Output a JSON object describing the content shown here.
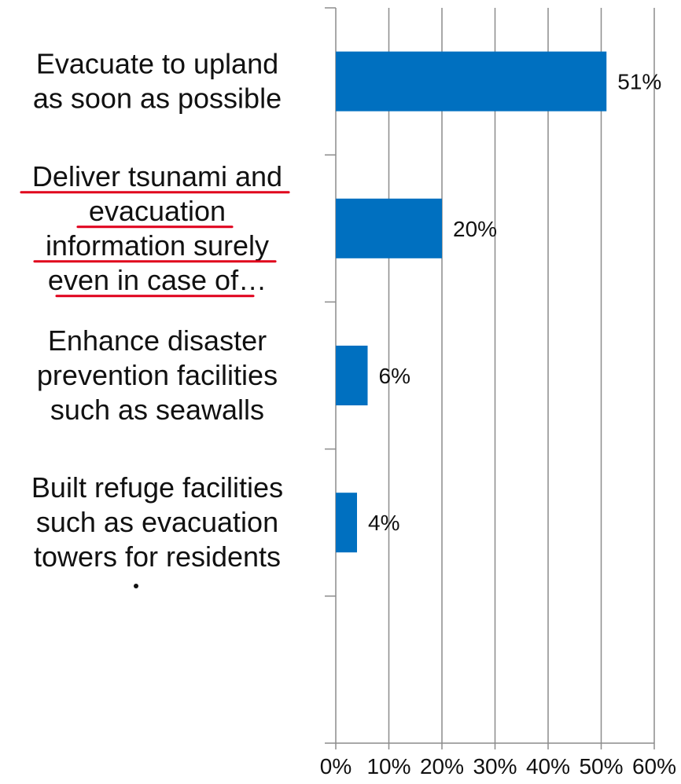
{
  "chart_data": {
    "type": "bar",
    "orientation": "horizontal",
    "categories": [
      [
        "Evacuate to upland",
        "as soon as possible"
      ],
      [
        "Deliver tsunami and",
        "evacuation",
        "information surely",
        "even in case of…"
      ],
      [
        "Enhance disaster",
        "prevention facilities",
        "such as seawalls"
      ],
      [
        "Built refuge facilities",
        "such as evacuation",
        "towers for residents"
      ]
    ],
    "values": [
      51,
      20,
      6,
      4
    ],
    "data_labels": [
      "51%",
      "20%",
      "6%",
      "4%"
    ],
    "xlim": [
      0,
      60
    ],
    "xticks": [
      0,
      10,
      20,
      30,
      40,
      50,
      60
    ],
    "xtick_labels": [
      "0%",
      "10%",
      "20%",
      "30%",
      "40%",
      "50%",
      "60%"
    ],
    "category_slots": 5,
    "grid": true,
    "title": "",
    "xlabel": "",
    "ylabel": "",
    "bar_color": "#0070C0",
    "highlight_color": "#E0001B",
    "highlighted_category": 1
  }
}
